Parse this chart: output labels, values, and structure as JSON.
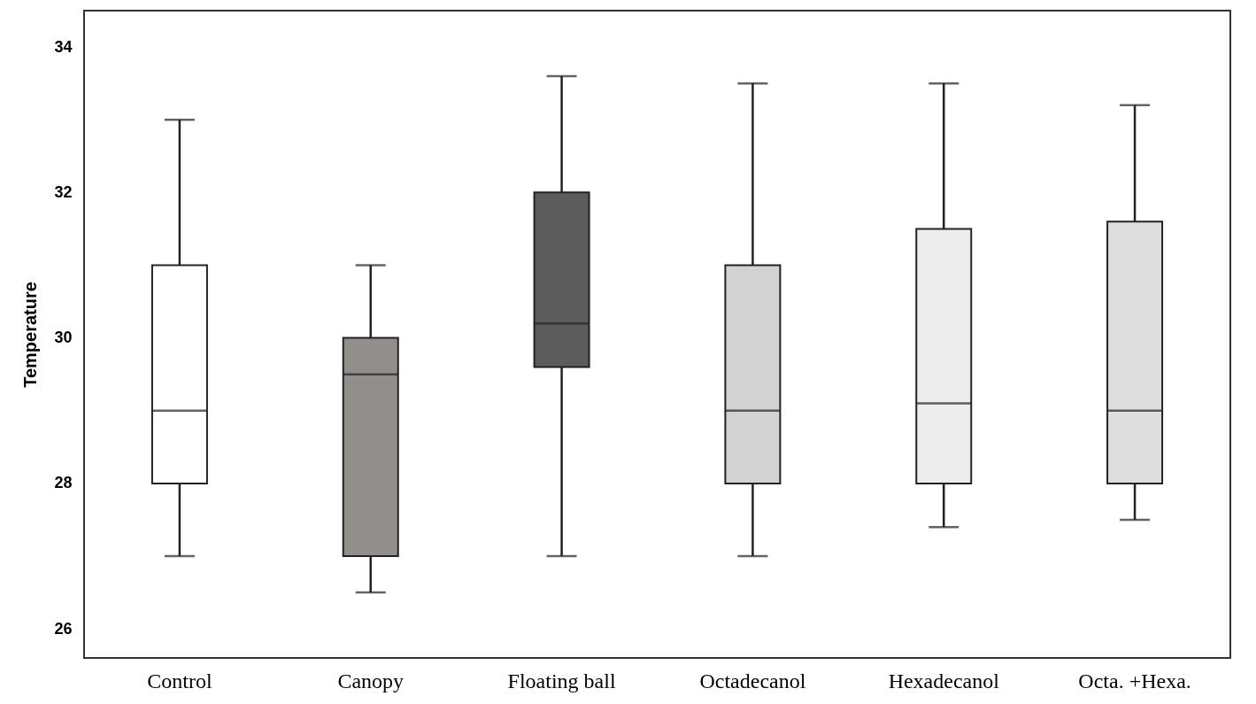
{
  "chart_data": {
    "type": "box",
    "ylabel": "Temperature",
    "categories": [
      "Control",
      "Canopy",
      "Floating ball",
      "Octadecanol",
      "Hexadecanol",
      "Octa. +Hexa."
    ],
    "boxes": [
      {
        "low": 27,
        "q1": 28,
        "median": 29,
        "q3": 31,
        "high": 33
      },
      {
        "low": 26.5,
        "q1": 27,
        "median": 29.5,
        "q3": 30,
        "high": 31
      },
      {
        "low": 27,
        "q1": 29.6,
        "median": 30.2,
        "q3": 32,
        "high": 33.6
      },
      {
        "low": 27,
        "q1": 28,
        "median": 29,
        "q3": 31,
        "high": 33.5
      },
      {
        "low": 27.4,
        "q1": 28,
        "median": 29.1,
        "q3": 31.5,
        "high": 33.5
      },
      {
        "low": 27.5,
        "q1": 28,
        "median": 29,
        "q3": 31.6,
        "high": 33.2
      }
    ],
    "colors": [
      "#ffffff",
      "#928e8b",
      "#5c5c5c",
      "#d2d2d2",
      "#ececec",
      "#dedede"
    ],
    "ylim": [
      25.6,
      34.5
    ],
    "yticks": [
      26,
      28,
      30,
      32,
      34
    ]
  }
}
